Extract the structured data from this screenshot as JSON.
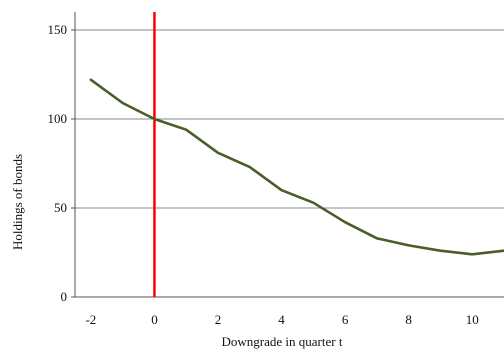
{
  "chart_data": {
    "type": "line",
    "title": "",
    "xlabel": "Downgrade in quarter t",
    "ylabel": "Holdings of bonds",
    "xlim": [
      -2.5,
      11
    ],
    "ylim": [
      0,
      150
    ],
    "xticks": [
      -2,
      0,
      2,
      4,
      6,
      8,
      10
    ],
    "yticks": [
      0,
      50,
      100,
      150
    ],
    "grid": "horizontal",
    "legend": "none",
    "series": [
      {
        "color": "#4a5e2a",
        "x": [
          -2,
          -1,
          0,
          1,
          2,
          3,
          4,
          5,
          6,
          7,
          8,
          9,
          10,
          11
        ],
        "y": [
          122,
          109,
          100,
          94,
          81,
          73,
          60,
          53,
          42,
          33,
          29,
          26,
          24,
          26
        ]
      }
    ],
    "reference_line": {
      "x": 0,
      "color": "#ff0000"
    }
  }
}
